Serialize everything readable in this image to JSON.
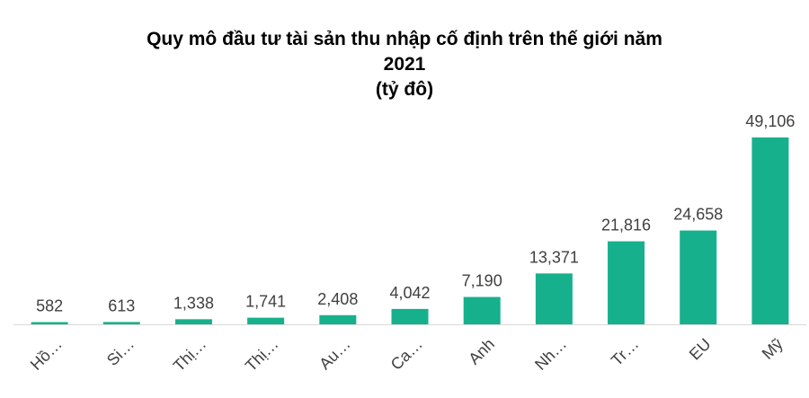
{
  "chart_data": {
    "type": "bar",
    "title_lines": [
      "Quy mô đầu tư tài sản thu nhập cố định trên thế giới năm",
      "2021",
      "(tỷ đô)"
    ],
    "categories": [
      "Hồ…",
      "Si…",
      "Thị…",
      "Thị…",
      "Au…",
      "Ca…",
      "Anh",
      "Nh…",
      "Tr…",
      "EU",
      "Mỹ"
    ],
    "values": [
      582,
      613,
      1338,
      1741,
      2408,
      4042,
      7190,
      13371,
      21816,
      24658,
      49106
    ],
    "data_labels": [
      "582",
      "613",
      "1,338",
      "1,741",
      "2,408",
      "4,042",
      "7,190",
      "13,371",
      "21,816",
      "24,658",
      "49,106"
    ],
    "ylim": [
      0,
      50000
    ],
    "grid": false,
    "legend": "none",
    "bar_color": "#17b08c",
    "axis_color": "#d9d9d9",
    "label_color": "#404040"
  }
}
